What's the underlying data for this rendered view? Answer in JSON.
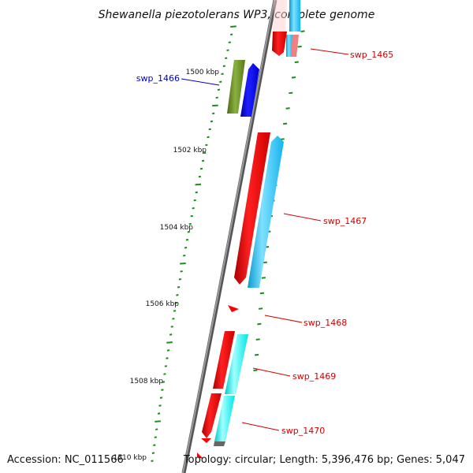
{
  "title": "Shewanella piezotolerans WP3, complete genome",
  "footer": {
    "accession": "Accession: NC_011566",
    "topology": "Topology: circular; Length: 5,396,476 bp; Genes: 5,047"
  },
  "ticks": [
    "1500 kbp",
    "1502 kbp",
    "1504 kbp",
    "1506 kbp",
    "1508 kbp",
    "1510 kbp"
  ],
  "genes": [
    {
      "name": "swp_1465",
      "color": "#d40000"
    },
    {
      "name": "swp_1466",
      "color": "#0000c8"
    },
    {
      "name": "swp_1467",
      "color": "#d40000"
    },
    {
      "name": "swp_1468",
      "color": "#d40000"
    },
    {
      "name": "swp_1469",
      "color": "#d40000"
    },
    {
      "name": "swp_1470",
      "color": "#d40000"
    }
  ],
  "colors": {
    "backbone": "#7a7a7a",
    "tick": "#1f8a1f",
    "cds_red": "#ff0000",
    "cds_blue": "#0000ff",
    "cds_olive": "#6b8e23",
    "cds_sky": "#1ec8ff",
    "cds_cyan": "#00ffff",
    "cds_pink": "#f08080",
    "cds_grey": "#666666"
  }
}
